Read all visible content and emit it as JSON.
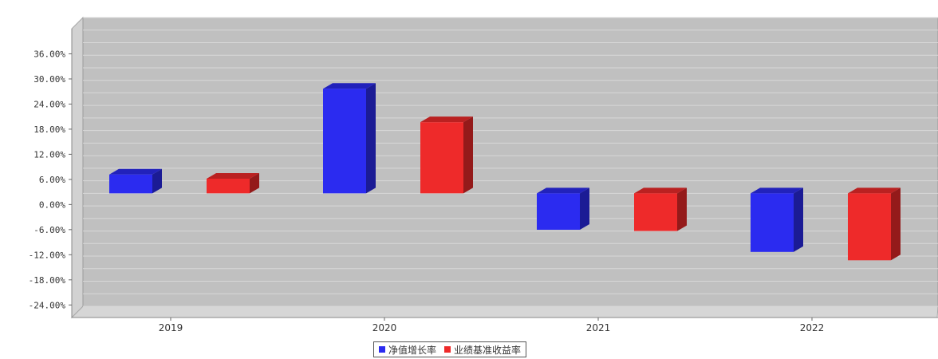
{
  "chart_data": {
    "type": "bar",
    "title": "",
    "xlabel": "",
    "ylabel": "",
    "categories": [
      "2019",
      "2020",
      "2021",
      "2022"
    ],
    "series": [
      {
        "name": "净值增长率",
        "color": "#2b2bf0",
        "values": [
          4.5,
          25.0,
          -8.7,
          -14.0
        ]
      },
      {
        "name": "业绩基准收益率",
        "color": "#ee2a2a",
        "values": [
          3.5,
          17.0,
          -9.0,
          -16.0
        ]
      }
    ],
    "yticks": [
      36,
      30,
      24,
      18,
      12,
      6,
      0,
      -6,
      -12,
      -18,
      -24
    ],
    "ytick_labels": [
      "36.00%",
      "30.00%",
      "24.00%",
      "18.00%",
      "12.00%",
      "6.00%",
      "0.00%",
      "-6.00%",
      "-12.00%",
      "-18.00%",
      "-24.00%"
    ],
    "ylim": [
      -27,
      42
    ],
    "grid": true,
    "style": "3d",
    "plot_background": "#c0c0c0",
    "legend": {
      "position": "bottom"
    }
  }
}
